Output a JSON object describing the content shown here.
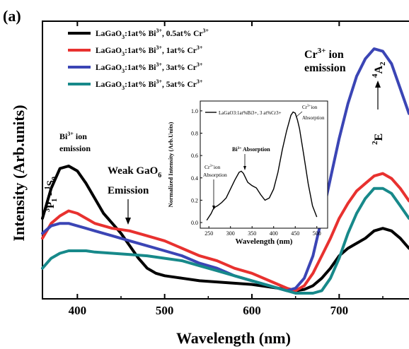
{
  "chart_data": {
    "type": "line",
    "panel_label": "(a)",
    "xlabel": "Wavelength (nm)",
    "ylabel": "Intensity (Arb.units)",
    "xlim": [
      360,
      780
    ],
    "ylim": [
      0,
      1.0
    ],
    "x_ticks": [
      400,
      500,
      600,
      700
    ],
    "x_tick_labels": [
      "400",
      "500",
      "600",
      "700"
    ],
    "grid": false,
    "legend_position": "top-left",
    "series": [
      {
        "name": "LaGaO3:1at% Bi3+, 0.5at% Cr3+",
        "color": "#000000",
        "x": [
          360,
          370,
          380,
          390,
          400,
          410,
          420,
          430,
          440,
          450,
          460,
          470,
          480,
          490,
          500,
          520,
          540,
          560,
          580,
          600,
          620,
          640,
          650,
          660,
          670,
          680,
          690,
          700,
          710,
          720,
          730,
          740,
          750,
          760,
          770,
          780
        ],
        "y": [
          0.3,
          0.42,
          0.5,
          0.51,
          0.49,
          0.44,
          0.38,
          0.32,
          0.28,
          0.24,
          0.19,
          0.14,
          0.1,
          0.08,
          0.07,
          0.06,
          0.05,
          0.045,
          0.04,
          0.035,
          0.025,
          0.015,
          0.01,
          0.015,
          0.03,
          0.06,
          0.1,
          0.15,
          0.18,
          0.2,
          0.22,
          0.25,
          0.26,
          0.25,
          0.22,
          0.18
        ]
      },
      {
        "name": "LaGaO3:1at% Bi3+, 1at% Cr3+",
        "color": "#e8312f",
        "x": [
          360,
          370,
          380,
          390,
          400,
          410,
          420,
          430,
          440,
          460,
          480,
          500,
          520,
          540,
          560,
          580,
          600,
          620,
          640,
          650,
          660,
          670,
          680,
          690,
          700,
          710,
          720,
          730,
          740,
          750,
          760,
          770,
          780
        ],
        "y": [
          0.22,
          0.28,
          0.31,
          0.33,
          0.32,
          0.3,
          0.28,
          0.27,
          0.26,
          0.25,
          0.23,
          0.21,
          0.18,
          0.15,
          0.13,
          0.1,
          0.08,
          0.05,
          0.02,
          0.01,
          0.03,
          0.08,
          0.15,
          0.22,
          0.3,
          0.36,
          0.41,
          0.44,
          0.47,
          0.48,
          0.46,
          0.42,
          0.37
        ]
      },
      {
        "name": "LaGaO3:1at% Bi3+, 3at% Cr3+",
        "color": "#3b45b5",
        "x": [
          360,
          370,
          380,
          390,
          400,
          410,
          420,
          430,
          440,
          460,
          480,
          500,
          520,
          540,
          560,
          580,
          600,
          620,
          640,
          650,
          660,
          670,
          680,
          690,
          700,
          710,
          720,
          730,
          740,
          750,
          760,
          770,
          780
        ],
        "y": [
          0.24,
          0.27,
          0.28,
          0.28,
          0.27,
          0.26,
          0.25,
          0.24,
          0.23,
          0.21,
          0.19,
          0.17,
          0.15,
          0.12,
          0.1,
          0.07,
          0.05,
          0.03,
          0.01,
          0.02,
          0.06,
          0.15,
          0.3,
          0.46,
          0.62,
          0.76,
          0.87,
          0.94,
          0.98,
          0.97,
          0.92,
          0.82,
          0.72
        ]
      },
      {
        "name": "LaGaO3:1at% Bi3+, 5at% Cr3+",
        "color": "#17898a",
        "x": [
          360,
          370,
          380,
          390,
          400,
          410,
          420,
          440,
          460,
          480,
          500,
          520,
          540,
          560,
          580,
          600,
          620,
          640,
          650,
          660,
          670,
          680,
          690,
          700,
          710,
          720,
          730,
          740,
          750,
          760,
          770,
          780
        ],
        "y": [
          0.1,
          0.14,
          0.16,
          0.17,
          0.17,
          0.17,
          0.165,
          0.16,
          0.155,
          0.15,
          0.14,
          0.13,
          0.11,
          0.09,
          0.07,
          0.05,
          0.03,
          0.01,
          0.0,
          0.0,
          0.0,
          0.01,
          0.06,
          0.14,
          0.24,
          0.32,
          0.38,
          0.42,
          0.42,
          0.4,
          0.35,
          0.3
        ]
      }
    ],
    "inset": {
      "xlabel": "Wavelength (nm)",
      "ylabel": "Normalized Intensity (Arb.Units)",
      "xlim": [
        230,
        525
      ],
      "ylim": [
        0,
        1.05
      ],
      "x_ticks": [
        250,
        300,
        350,
        400,
        450,
        500
      ],
      "x_tick_labels": [
        "250",
        "300",
        "350",
        "400",
        "450",
        "500"
      ],
      "y_ticks": [
        0.0,
        0.2,
        0.4,
        0.6,
        0.8,
        1.0
      ],
      "y_tick_labels": [
        "0.0",
        "0.2",
        "0.4",
        "0.6",
        "0.8",
        "1.0"
      ],
      "legend_label": "LaGaO3:1at%Bi3+, 3 at%Cr3+",
      "series": {
        "color": "#000000",
        "x": [
          245,
          250,
          255,
          260,
          265,
          270,
          280,
          290,
          300,
          310,
          320,
          325,
          330,
          340,
          350,
          360,
          370,
          380,
          390,
          400,
          410,
          420,
          430,
          440,
          445,
          450,
          455,
          460,
          470,
          480,
          490,
          500
        ],
        "y": [
          0.02,
          0.05,
          0.08,
          0.12,
          0.14,
          0.15,
          0.18,
          0.22,
          0.3,
          0.38,
          0.45,
          0.46,
          0.44,
          0.36,
          0.33,
          0.31,
          0.25,
          0.2,
          0.22,
          0.3,
          0.45,
          0.65,
          0.82,
          0.96,
          0.99,
          0.98,
          0.92,
          0.84,
          0.6,
          0.35,
          0.15,
          0.05
        ]
      },
      "annotations": {
        "cr_abs_low_1": "Cr",
        "cr_abs_low_2": "ion",
        "cr_abs_low_3": "Absorption",
        "bi_abs": "Bi",
        "bi_abs_sup": "3+",
        "bi_abs_tail": " Absorption",
        "cr_abs_high_1": "Cr",
        "cr_abs_high_2": "ion",
        "cr_abs_high_3": "Absorption"
      }
    },
    "annotations": {
      "bi_transition_prefix": "3",
      "bi_transition_P": "P",
      "bi_transition_sub1": "1",
      "bi_transition_dash": " - ",
      "bi_transition_sup1": "1",
      "bi_transition_S": "S",
      "bi_transition_sub0": "0",
      "bi_ion": "Bi",
      "bi_ion_sup": "3+",
      "bi_ion_tail": " ion",
      "bi_emission": "emission",
      "weak_gao6": "Weak GaO",
      "weak_gao6_sub": "6",
      "weak_emission": "Emission",
      "cr_ion": "Cr",
      "cr_ion_sup": "3+",
      "cr_ion_tail": " ion",
      "cr_emission": "emission",
      "cr_transition_2": "2",
      "cr_transition_E": "E",
      "cr_transition_4": "4",
      "cr_transition_A": "A",
      "cr_transition_sub2": "2"
    },
    "legend_parts": {
      "host": "LaGaO",
      "sub3": "3",
      "bi": ":1at% Bi",
      "bisup": "3+",
      "cr_sup": "3+",
      "cr": "Cr",
      "doping": [
        "0.5at%",
        "1at%",
        "3at%",
        "5at%"
      ]
    }
  }
}
